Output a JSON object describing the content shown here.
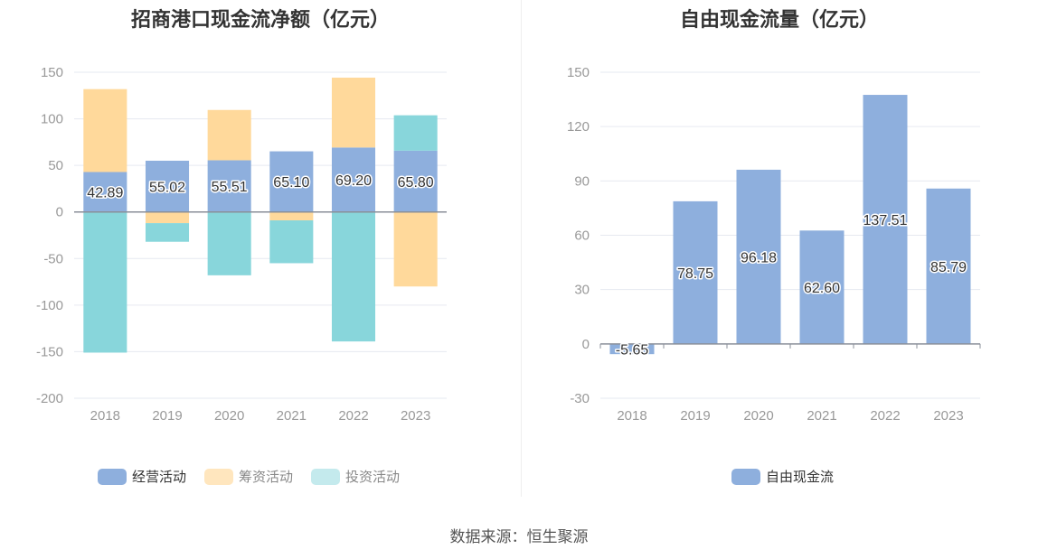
{
  "source_text": "数据来源：恒生聚源",
  "chart_data": [
    {
      "type": "bar",
      "stacked": true,
      "title": "招商港口现金流净额（亿元）",
      "categories": [
        "2018",
        "2019",
        "2020",
        "2021",
        "2022",
        "2023"
      ],
      "ylim": [
        -200,
        150
      ],
      "yticks": [
        150,
        100,
        50,
        0,
        -50,
        -100,
        -150,
        -200
      ],
      "grid": true,
      "legend_position": "bottom",
      "series": [
        {
          "name": "经营活动",
          "color": "#8eafdd",
          "values": [
            42.89,
            55.02,
            55.51,
            65.1,
            69.2,
            65.8
          ],
          "labels": [
            "42.89",
            "55.02",
            "55.51",
            "65.10",
            "69.20",
            "65.80"
          ]
        },
        {
          "name": "筹资活动",
          "color": "#ffd99b",
          "values": [
            89,
            -12,
            54,
            -9,
            75,
            -80
          ]
        },
        {
          "name": "投资活动",
          "color": "#88d6db",
          "values": [
            -151,
            -20,
            -68,
            -46,
            -139,
            38
          ]
        }
      ]
    },
    {
      "type": "bar",
      "title": "自由现金流量（亿元）",
      "categories": [
        "2018",
        "2019",
        "2020",
        "2021",
        "2022",
        "2023"
      ],
      "ylim": [
        -30,
        150
      ],
      "yticks": [
        150,
        120,
        90,
        60,
        30,
        0,
        -30
      ],
      "grid": true,
      "legend_position": "bottom",
      "series": [
        {
          "name": "自由现金流",
          "color": "#8eafdd",
          "values": [
            -5.65,
            78.75,
            96.18,
            62.6,
            137.51,
            85.79
          ],
          "labels": [
            "-5.65",
            "78.75",
            "96.18",
            "62.60",
            "137.51",
            "85.79"
          ]
        }
      ]
    }
  ]
}
